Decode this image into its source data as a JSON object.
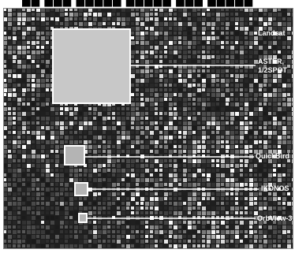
{
  "header_fragment": "██ ███ █████ █████ ███ █████",
  "labels": {
    "landsat": "Landsat",
    "aster_line1": "ASTER,",
    "aster_line2": "1/2SPOT",
    "quickbird": "QuickBird",
    "ikonos": "IKONOS",
    "orbview": "OrbView-3"
  },
  "colors": {
    "footprint_fill": "#c8c8c8",
    "footprint_edge": "#ffffff",
    "leader_line": "#ffffff",
    "imagery_dark": "#2a2a2a",
    "imagery_mid": "#6e6e6e",
    "imagery_light": "#e6e6e6"
  }
}
